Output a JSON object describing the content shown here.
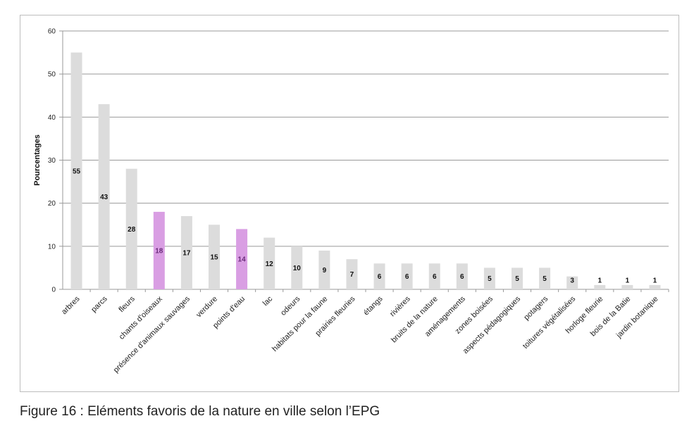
{
  "caption": "Figure 16 : Eléments favoris de la nature en ville selon l’EPG",
  "colors": {
    "bar_default": "#dcdcdc",
    "bar_highlight": "#d99ee3",
    "label_default": "#111111",
    "label_highlight": "#6a2b7a",
    "grid": "#999999"
  },
  "chart_data": {
    "type": "bar",
    "title": "",
    "xlabel": "",
    "ylabel": "Pourcentages",
    "ylim": [
      0,
      60
    ],
    "yticks": [
      0,
      10,
      20,
      30,
      40,
      50,
      60
    ],
    "grid": true,
    "categories": [
      "arbres",
      "parcs",
      "fleurs",
      "chants d'oiseaux",
      "présence d'animaux sauvages",
      "verdure",
      "points d'eau",
      "lac",
      "odeurs",
      "habitats pour la faune",
      "prairies fleuries",
      "étangs",
      "rivières",
      "bruits de la nature",
      "aménagements",
      "zones boisées",
      "aspects pédagogiques",
      "potagers",
      "toitures végétalisées",
      "horloge fleurie",
      "bois de la Batie",
      "jardin botanique"
    ],
    "values": [
      55,
      43,
      28,
      18,
      17,
      15,
      14,
      12,
      10,
      9,
      7,
      6,
      6,
      6,
      6,
      5,
      5,
      5,
      3,
      1,
      1,
      1
    ],
    "highlighted": [
      "chants d'oiseaux",
      "points d'eau"
    ]
  }
}
